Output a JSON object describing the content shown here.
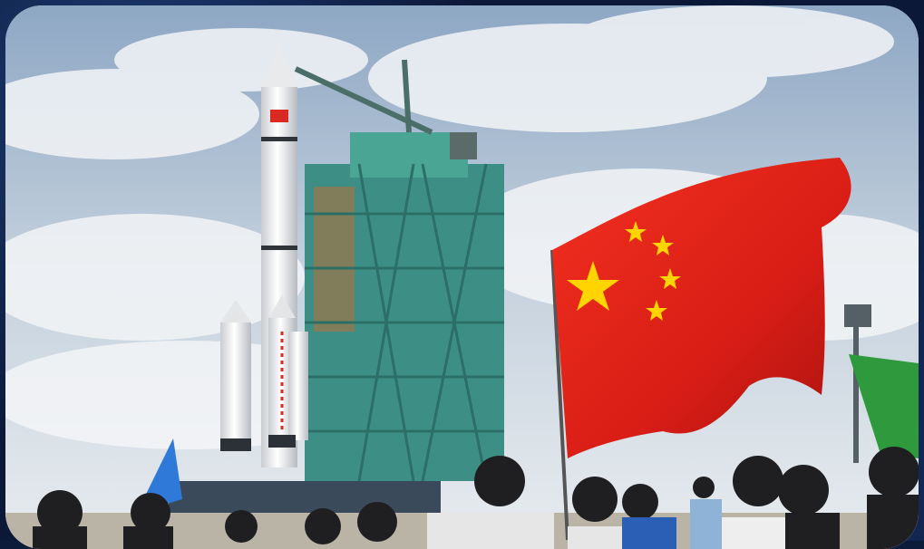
{
  "image": {
    "subject": "rocket-launch-site",
    "colors": {
      "sky": "#9fb4cc",
      "cloud": "#f2f4f6",
      "tower": "#3f9a8a",
      "flag_red": "#e0231b",
      "flag_star": "#ffd400",
      "green_flag": "#2f9a3d",
      "blue_flag": "#2f7ad8"
    }
  }
}
